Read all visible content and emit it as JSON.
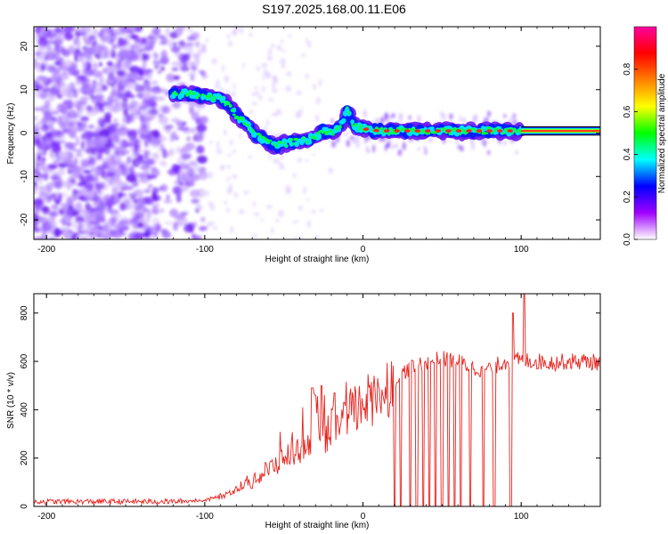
{
  "title": "S197.2025.168.00.11.E06",
  "chart_data": [
    {
      "type": "heatmap",
      "xlabel": "Height of straight line (km)",
      "ylabel": "Frequency (Hz)",
      "xlim": [
        -208,
        150
      ],
      "ylim": [
        -24.5,
        24.5
      ],
      "xticks": [
        -200,
        -100,
        0,
        100
      ],
      "yticks": [
        -20,
        -10,
        0,
        10,
        20
      ],
      "colorbar": {
        "label": "Normalized spectral amplitude",
        "range": [
          0,
          1
        ],
        "ticks": [
          "0.0",
          "0.2",
          "0.4",
          "0.6",
          "0.8"
        ],
        "colors": [
          "#ffffff",
          "#a000ff",
          "#0000ff",
          "#00ffff",
          "#00ff00",
          "#ffff00",
          "#ff8000",
          "#ff0000",
          "#ff00a0"
        ]
      },
      "ridge": {
        "x": [
          -120,
          -110,
          -100,
          -90,
          -85,
          -80,
          -75,
          -70,
          -65,
          -60,
          -55,
          -50,
          -45,
          -40,
          -35,
          -30,
          -25,
          -20,
          -15,
          -12,
          -10,
          -8,
          -5,
          0,
          10,
          20,
          40,
          60,
          80,
          90,
          100,
          150
        ],
        "y": [
          9,
          9,
          8.5,
          8,
          6.5,
          4,
          2.5,
          0.5,
          -1,
          -2,
          -3,
          -2.5,
          -2,
          -2,
          -1.5,
          -1,
          0.5,
          0,
          1,
          3,
          5.5,
          3,
          1.5,
          1,
          0.5,
          0.5,
          0.5,
          0.5,
          0.5,
          0.5,
          0.5,
          0.5
        ]
      },
      "noise_region_x": [
        -208,
        -110
      ],
      "steady_band": {
        "x": [
          100,
          150
        ],
        "y": 0.5
      }
    },
    {
      "type": "line",
      "xlabel": "Height of straight line (km)",
      "ylabel": "SNR (10 * v/v)",
      "xlim": [
        -208,
        150
      ],
      "ylim": [
        0,
        880
      ],
      "xticks": [
        -200,
        -100,
        0,
        100
      ],
      "yticks": [
        0,
        200,
        400,
        600,
        800
      ],
      "color": "#e8231e",
      "envelope": {
        "x": [
          -208,
          -120,
          -100,
          -90,
          -80,
          -70,
          -60,
          -50,
          -40,
          -30,
          -20,
          -10,
          0,
          10,
          20,
          30,
          40,
          50,
          60,
          70,
          80,
          90,
          100,
          110,
          120,
          130,
          140,
          150
        ],
        "y": [
          20,
          20,
          25,
          40,
          70,
          100,
          150,
          200,
          240,
          280,
          320,
          380,
          420,
          470,
          530,
          575,
          600,
          610,
          600,
          570,
          570,
          600,
          605,
          600,
          595,
          600,
          600,
          595
        ]
      },
      "spikes": [
        {
          "x": -32,
          "y": 490
        },
        {
          "x": -30,
          "y": 460
        },
        {
          "x": -26,
          "y": 500
        },
        {
          "x": -18,
          "y": 470
        },
        {
          "x": -12,
          "y": 430
        },
        {
          "x": 102,
          "y": 880
        },
        {
          "x": 95,
          "y": 800
        }
      ],
      "dropouts_x": [
        20,
        24,
        30,
        34,
        38,
        42,
        46,
        50,
        54,
        58,
        62,
        68,
        76,
        83,
        93,
        94
      ]
    }
  ]
}
